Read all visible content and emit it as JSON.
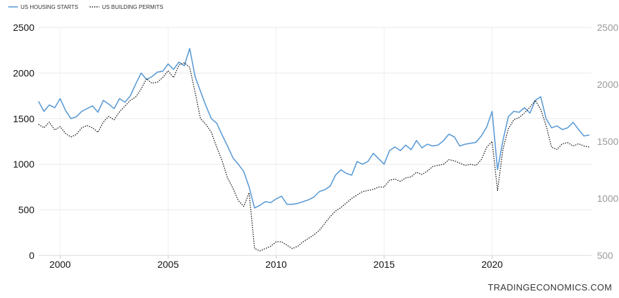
{
  "chart_data": {
    "type": "line",
    "legend": {
      "placement": "top-left"
    },
    "grid": true,
    "colors": {
      "starts": "#5b9bd5",
      "permits": "#111111"
    },
    "x_range": [
      1999.0,
      2024.6
    ],
    "x_ticks": [
      "2000",
      "2005",
      "2010",
      "2015",
      "2020"
    ],
    "left_axis": {
      "ticks": [
        "0",
        "500",
        "1000",
        "1500",
        "2000",
        "2500"
      ],
      "ylim": [
        0,
        2500
      ]
    },
    "right_axis": {
      "ticks": [
        "500",
        "1000",
        "1500",
        "2000",
        "2500"
      ],
      "ylim": [
        500,
        2500
      ]
    },
    "series": [
      {
        "name": "US HOUSING STARTS",
        "axis": "left",
        "style": "solid",
        "x": [
          1999.0,
          1999.25,
          1999.5,
          1999.75,
          2000.0,
          2000.25,
          2000.5,
          2000.75,
          2001.0,
          2001.25,
          2001.5,
          2001.75,
          2002.0,
          2002.25,
          2002.5,
          2002.75,
          2003.0,
          2003.25,
          2003.5,
          2003.75,
          2004.0,
          2004.25,
          2004.5,
          2004.75,
          2005.0,
          2005.25,
          2005.5,
          2005.75,
          2006.0,
          2006.25,
          2006.5,
          2006.75,
          2007.0,
          2007.25,
          2007.5,
          2007.75,
          2008.0,
          2008.25,
          2008.5,
          2008.75,
          2009.0,
          2009.25,
          2009.5,
          2009.75,
          2010.0,
          2010.25,
          2010.5,
          2010.75,
          2011.0,
          2011.25,
          2011.5,
          2011.75,
          2012.0,
          2012.25,
          2012.5,
          2012.75,
          2013.0,
          2013.25,
          2013.5,
          2013.75,
          2014.0,
          2014.25,
          2014.5,
          2014.75,
          2015.0,
          2015.25,
          2015.5,
          2015.75,
          2016.0,
          2016.25,
          2016.5,
          2016.75,
          2017.0,
          2017.25,
          2017.5,
          2017.75,
          2018.0,
          2018.25,
          2018.5,
          2018.75,
          2019.0,
          2019.25,
          2019.5,
          2019.75,
          2020.0,
          2020.25,
          2020.5,
          2020.75,
          2021.0,
          2021.25,
          2021.5,
          2021.75,
          2022.0,
          2022.25,
          2022.5,
          2022.75,
          2023.0,
          2023.25,
          2023.5,
          2023.75,
          2024.0,
          2024.25,
          2024.5
        ],
        "values": [
          1690,
          1580,
          1650,
          1620,
          1720,
          1590,
          1500,
          1520,
          1580,
          1610,
          1640,
          1570,
          1700,
          1660,
          1610,
          1720,
          1680,
          1750,
          1880,
          2000,
          1930,
          1960,
          2010,
          2020,
          2100,
          2040,
          2120,
          2080,
          2270,
          1960,
          1800,
          1640,
          1500,
          1450,
          1320,
          1200,
          1070,
          1000,
          920,
          750,
          520,
          550,
          590,
          580,
          620,
          650,
          560,
          560,
          570,
          590,
          610,
          640,
          700,
          720,
          760,
          880,
          940,
          900,
          880,
          1030,
          1000,
          1030,
          1120,
          1060,
          1000,
          1150,
          1190,
          1150,
          1210,
          1160,
          1260,
          1180,
          1220,
          1200,
          1210,
          1260,
          1330,
          1300,
          1200,
          1220,
          1230,
          1240,
          1310,
          1410,
          1580,
          940,
          1260,
          1520,
          1580,
          1570,
          1620,
          1560,
          1700,
          1740,
          1500,
          1400,
          1420,
          1380,
          1400,
          1460,
          1380,
          1310,
          1320
        ]
      },
      {
        "name": "US BUILDING PERMITS",
        "axis": "right",
        "style": "dotted",
        "x": [
          1999.0,
          1999.25,
          1999.5,
          1999.75,
          2000.0,
          2000.25,
          2000.5,
          2000.75,
          2001.0,
          2001.25,
          2001.5,
          2001.75,
          2002.0,
          2002.25,
          2002.5,
          2002.75,
          2003.0,
          2003.25,
          2003.5,
          2003.75,
          2004.0,
          2004.25,
          2004.5,
          2004.75,
          2005.0,
          2005.25,
          2005.5,
          2005.75,
          2006.0,
          2006.25,
          2006.5,
          2006.75,
          2007.0,
          2007.25,
          2007.5,
          2007.75,
          2008.0,
          2008.25,
          2008.5,
          2008.75,
          2009.0,
          2009.25,
          2009.5,
          2009.75,
          2010.0,
          2010.25,
          2010.5,
          2010.75,
          2011.0,
          2011.25,
          2011.5,
          2011.75,
          2012.0,
          2012.25,
          2012.5,
          2012.75,
          2013.0,
          2013.25,
          2013.5,
          2013.75,
          2014.0,
          2014.25,
          2014.5,
          2014.75,
          2015.0,
          2015.25,
          2015.5,
          2015.75,
          2016.0,
          2016.25,
          2016.5,
          2016.75,
          2017.0,
          2017.25,
          2017.5,
          2017.75,
          2018.0,
          2018.25,
          2018.5,
          2018.75,
          2019.0,
          2019.25,
          2019.5,
          2019.75,
          2020.0,
          2020.25,
          2020.5,
          2020.75,
          2021.0,
          2021.25,
          2021.5,
          2021.75,
          2022.0,
          2022.25,
          2022.5,
          2022.75,
          2023.0,
          2023.25,
          2023.5,
          2023.75,
          2024.0,
          2024.25,
          2024.5
        ],
        "values": [
          1650,
          1620,
          1670,
          1600,
          1630,
          1570,
          1540,
          1560,
          1620,
          1640,
          1620,
          1580,
          1670,
          1720,
          1690,
          1760,
          1810,
          1860,
          1890,
          1960,
          2050,
          2010,
          2020,
          2060,
          2120,
          2060,
          2170,
          2190,
          2150,
          1930,
          1700,
          1650,
          1580,
          1450,
          1330,
          1180,
          1090,
          980,
          930,
          1050,
          560,
          540,
          560,
          580,
          620,
          620,
          590,
          560,
          580,
          620,
          650,
          680,
          720,
          780,
          840,
          890,
          920,
          960,
          1000,
          1030,
          1060,
          1070,
          1080,
          1100,
          1100,
          1160,
          1170,
          1150,
          1180,
          1190,
          1230,
          1210,
          1240,
          1280,
          1290,
          1300,
          1340,
          1330,
          1310,
          1290,
          1300,
          1290,
          1340,
          1450,
          1500,
          1070,
          1430,
          1610,
          1690,
          1710,
          1750,
          1800,
          1860,
          1780,
          1640,
          1450,
          1430,
          1480,
          1490,
          1460,
          1480,
          1460,
          1450
        ]
      }
    ]
  },
  "watermark": "TRADINGECONOMICS.COM"
}
